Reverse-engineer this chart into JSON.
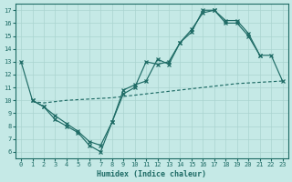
{
  "xlabel": "Humidex (Indice chaleur)",
  "xlim": [
    -0.5,
    23.5
  ],
  "ylim": [
    5.5,
    17.5
  ],
  "xticks": [
    0,
    1,
    2,
    3,
    4,
    5,
    6,
    7,
    8,
    9,
    10,
    11,
    12,
    13,
    14,
    15,
    16,
    17,
    18,
    19,
    20,
    21,
    22,
    23
  ],
  "yticks": [
    6,
    7,
    8,
    9,
    10,
    11,
    12,
    13,
    14,
    15,
    16,
    17
  ],
  "bg_color": "#c5e9e6",
  "line_color": "#1e6b65",
  "grid_color": "#aad4d0",
  "curve1_x": [
    0,
    1,
    2,
    3,
    4,
    5,
    6,
    7,
    8,
    9,
    10,
    11,
    12,
    13,
    14,
    15,
    16,
    17,
    18,
    19,
    20,
    21
  ],
  "curve1_y": [
    13,
    10,
    9.5,
    8.5,
    8.0,
    7.5,
    6.5,
    6.0,
    8.3,
    10.5,
    11.0,
    13.0,
    12.8,
    13.0,
    14.5,
    15.3,
    17.0,
    17.0,
    16.0,
    16.0,
    15.0,
    13.5
  ],
  "curve2_x": [
    1,
    2,
    3,
    4,
    5,
    6,
    7,
    8,
    9,
    10,
    11,
    12,
    13,
    14,
    15,
    16,
    17,
    18,
    19,
    20,
    21,
    22,
    23
  ],
  "curve2_y": [
    10.0,
    9.5,
    8.8,
    8.2,
    7.6,
    6.8,
    6.5,
    8.3,
    10.8,
    11.2,
    11.5,
    13.2,
    12.8,
    14.5,
    15.5,
    16.8,
    17.0,
    16.2,
    16.2,
    15.2,
    13.5,
    13.5,
    11.5
  ],
  "curve3_x": [
    1,
    2,
    3,
    4,
    5,
    6,
    7,
    8,
    9,
    10,
    11,
    12,
    13,
    14,
    15,
    16,
    17,
    18,
    19,
    20,
    21,
    22,
    23
  ],
  "curve3_y": [
    9.9,
    9.8,
    9.9,
    10.0,
    10.05,
    10.1,
    10.15,
    10.2,
    10.3,
    10.4,
    10.5,
    10.6,
    10.7,
    10.8,
    10.9,
    11.0,
    11.1,
    11.2,
    11.3,
    11.35,
    11.4,
    11.45,
    11.5
  ]
}
